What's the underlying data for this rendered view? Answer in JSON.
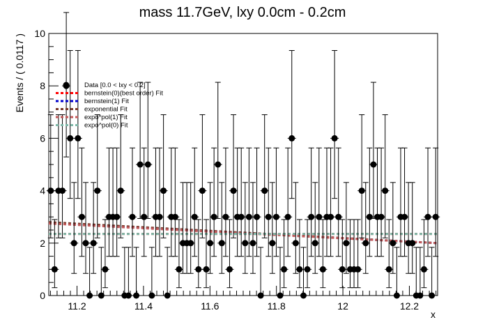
{
  "chart_data": {
    "type": "scatter",
    "title": "mass 11.7GeV, lxy 0.0cm - 0.2cm",
    "xlabel": "x",
    "ylabel": "Events / ( 0.0117 )",
    "xlim": [
      11.115,
      12.285
    ],
    "ylim": [
      0,
      10
    ],
    "x_ticks": [
      11.2,
      11.4,
      11.6,
      11.8,
      12,
      12.2
    ],
    "x_tick_labels": [
      "11.2",
      "11.4",
      "11.6",
      "11.8",
      "12",
      "12.2"
    ],
    "y_ticks": [
      0,
      2,
      4,
      6,
      8,
      10
    ],
    "y_tick_labels": [
      "0",
      "2",
      "4",
      "6",
      "8",
      "10"
    ],
    "bin_width": 0.0117,
    "data_series": {
      "name": "Data [0.0 < lxy < 0.2]",
      "color": "#000000",
      "x_first_center": 11.12085,
      "values": [
        4,
        1,
        4,
        4,
        8,
        6,
        2,
        6,
        3,
        2,
        0,
        2,
        4,
        0,
        1,
        3,
        3,
        3,
        4,
        0,
        0,
        3,
        0,
        5,
        3,
        5,
        0,
        3,
        3,
        4,
        0,
        3,
        3,
        1,
        2,
        2,
        2,
        3,
        1,
        4,
        1,
        2,
        3,
        5,
        2,
        3,
        1,
        4,
        3,
        3,
        2,
        3,
        2,
        3,
        0,
        4,
        3,
        2,
        3,
        0,
        1,
        3,
        6,
        2,
        1,
        0,
        1,
        3,
        2,
        3,
        1,
        3,
        3,
        6,
        3,
        1,
        2,
        1,
        1,
        1,
        4,
        2,
        3,
        5,
        3,
        3,
        4,
        1,
        2,
        0,
        3,
        3,
        2,
        2,
        0,
        0,
        1,
        3,
        0,
        3,
        4,
        2
      ]
    },
    "fits": [
      {
        "name": "bernstein(0)(best order) Fit",
        "color": "#ff0000",
        "y_start": 2.35,
        "y_end": 2.35
      },
      {
        "name": "bernstein(1) Fit",
        "color": "#0000cc",
        "y_start": 2.78,
        "y_end": 2.0
      },
      {
        "name": "exponential Fit",
        "color": "#7a3a2a",
        "y_start": 2.8,
        "y_end": 2.0
      },
      {
        "name": "expo*pol(1) Fit",
        "color": "#c25a5a",
        "y_start": 2.75,
        "y_end": 2.0
      },
      {
        "name": "expo^pol(0) Fit",
        "color": "#7fb8a8",
        "y_start": 2.35,
        "y_end": 2.35
      }
    ],
    "legend_position": "top-left",
    "grid": false
  }
}
